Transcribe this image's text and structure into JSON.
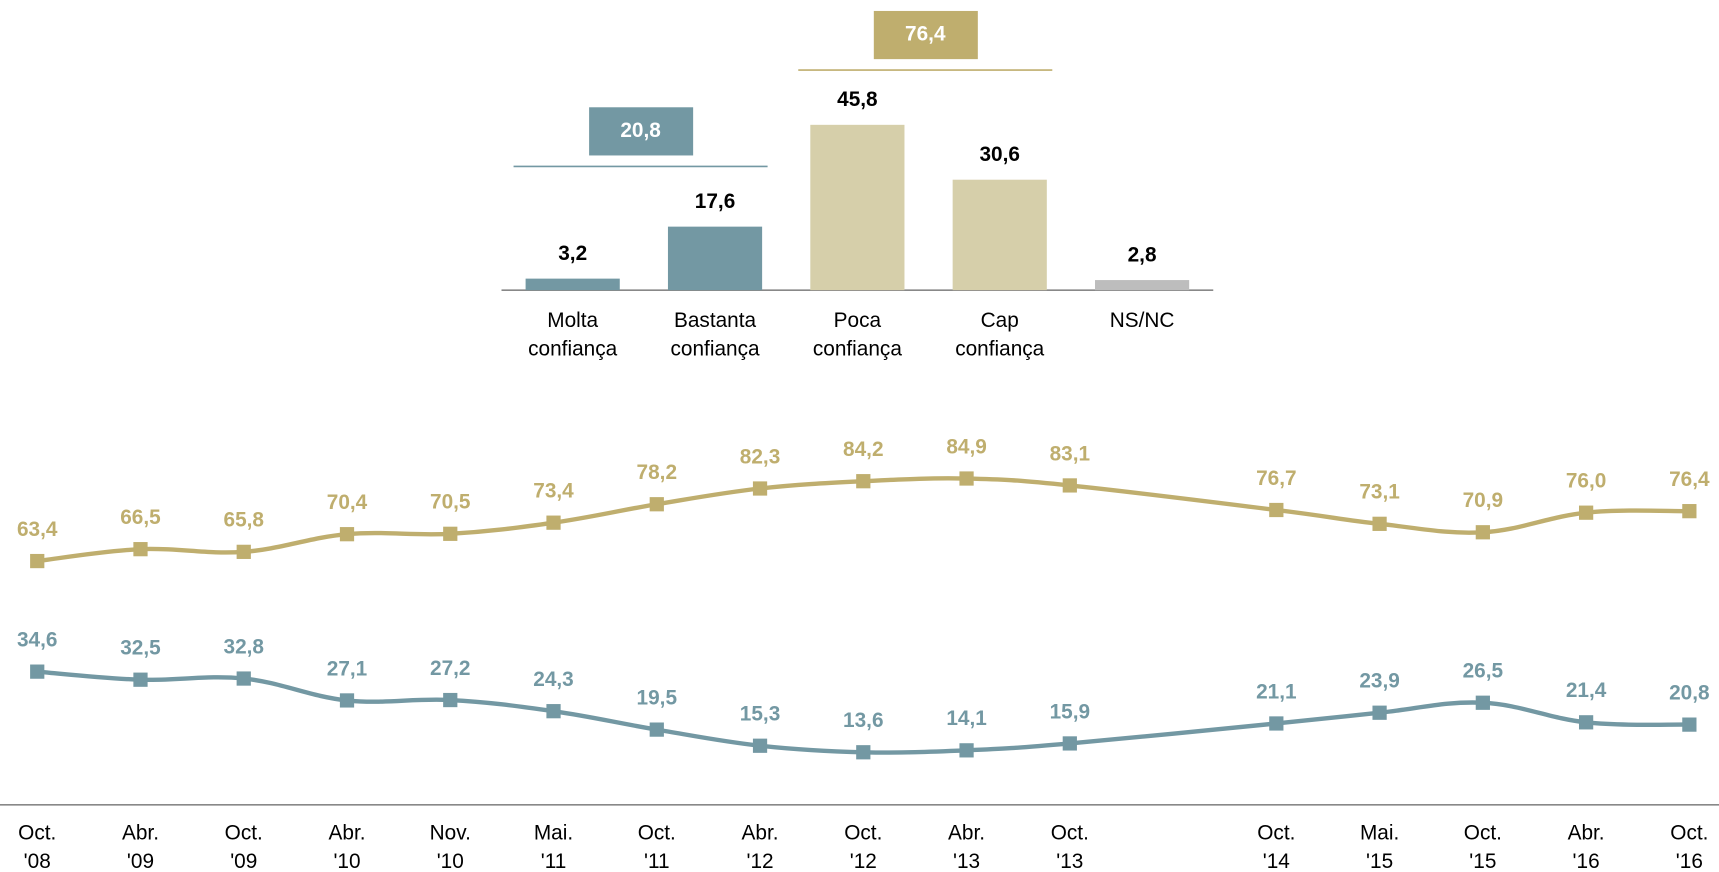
{
  "chart_data": [
    {
      "type": "bar",
      "categories": [
        "Molta confiança",
        "Bastanta confiança",
        "Poca confiança",
        "Cap confiança",
        "NS/NC"
      ],
      "values": [
        3.2,
        17.6,
        45.8,
        30.6,
        2.8
      ],
      "value_labels": [
        "3,2",
        "17,6",
        "45,8",
        "30,6",
        "2,8"
      ],
      "colors": [
        "#7398a3",
        "#7398a3",
        "#d6cfaa",
        "#d6cfaa",
        "#bdbdbd"
      ],
      "groups": [
        {
          "value": 20.8,
          "label": "20,8",
          "color": "#7398a3",
          "members": [
            "Molta confiança",
            "Bastanta confiança"
          ]
        },
        {
          "value": 76.4,
          "label": "76,4",
          "color": "#bfae6e",
          "members": [
            "Poca confiança",
            "Cap confiança"
          ]
        }
      ]
    },
    {
      "type": "line",
      "categories": [
        "Oct. '08",
        "Abr. '09",
        "Oct. '09",
        "Abr. '10",
        "Nov. '10",
        "Mai. '11",
        "Oct. '11",
        "Abr. '12",
        "Oct. '12",
        "Abr. '13",
        "Oct. '13",
        null,
        "Oct. '14",
        "Mai. '15",
        "Oct. '15",
        "Abr. '16",
        "Oct. '16"
      ],
      "series": [
        {
          "color": "#bfae6e",
          "values": [
            63.4,
            66.5,
            65.8,
            70.4,
            70.5,
            73.4,
            78.2,
            82.3,
            84.2,
            84.9,
            83.1,
            null,
            76.7,
            73.1,
            70.9,
            76.0,
            76.4
          ],
          "value_labels": [
            "63,4",
            "66,5",
            "65,8",
            "70,4",
            "70,5",
            "73,4",
            "78,2",
            "82,3",
            "84,2",
            "84,9",
            "83,1",
            null,
            "76,7",
            "73,1",
            "70,9",
            "76,0",
            "76,4"
          ]
        },
        {
          "color": "#7398a3",
          "values": [
            34.6,
            32.5,
            32.8,
            27.1,
            27.2,
            24.3,
            19.5,
            15.3,
            13.6,
            14.1,
            15.9,
            null,
            21.1,
            23.9,
            26.5,
            21.4,
            20.8
          ],
          "value_labels": [
            "34,6",
            "32,5",
            "32,8",
            "27,1",
            "27,2",
            "24,3",
            "19,5",
            "15,3",
            "13,6",
            "14,1",
            "15,9",
            null,
            "21,1",
            "23,9",
            "26,5",
            "21,4",
            "20,8"
          ]
        }
      ]
    }
  ]
}
